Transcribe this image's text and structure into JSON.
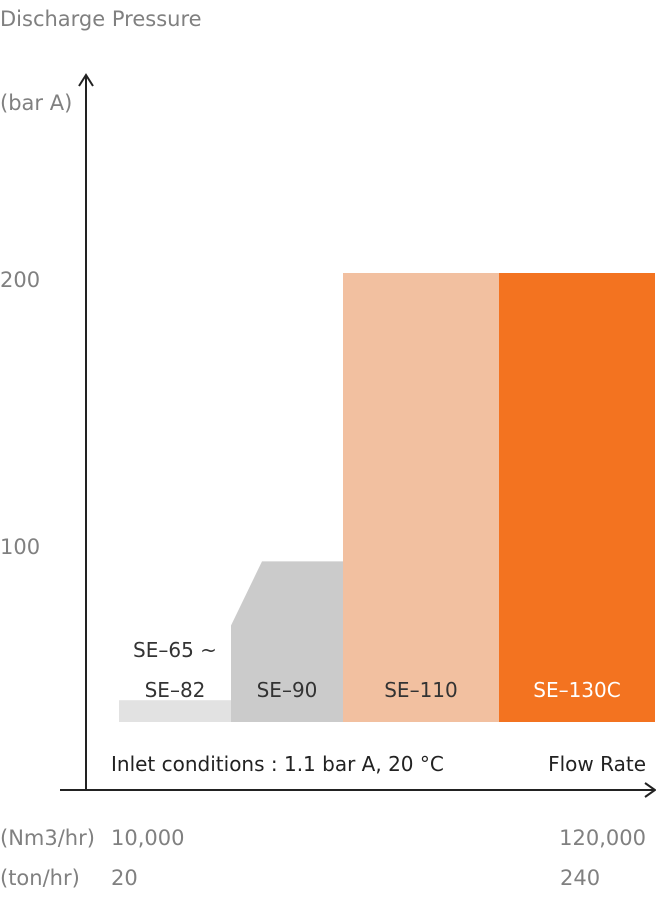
{
  "chart_data": {
    "type": "bar",
    "title": "Discharge Pressure",
    "ylabel": "(bar A)",
    "xlabel": "Flow Rate",
    "yticks": [
      "200",
      "100"
    ],
    "annotation": "Inlet conditions : 1.1 bar A, 20 °C",
    "x_scales": [
      {
        "unit": "(Nm3/hr)",
        "min": "10,000",
        "max": "120,000"
      },
      {
        "unit": "(ton/hr)",
        "min": "20",
        "max": "240"
      }
    ],
    "categories": [
      "SE-65 ~ SE-82",
      "SE-90",
      "SE-110",
      "SE-130C"
    ],
    "bars": [
      {
        "label_lines": [
          "SE–65 ~",
          "SE–82"
        ],
        "value": 40,
        "color": "#e2e2e2",
        "text_color": "#333333"
      },
      {
        "label_lines": [
          "SE–90"
        ],
        "value": 92,
        "value_start": 68,
        "color": "#cbcbcb",
        "text_color": "#333333"
      },
      {
        "label_lines": [
          "SE–110"
        ],
        "value": 200,
        "color": "#f2c0a0",
        "text_color": "#333333"
      },
      {
        "label_lines": [
          "SE–130C"
        ],
        "value": 200,
        "color": "#f37320",
        "text_color": "#ffffff"
      }
    ]
  }
}
